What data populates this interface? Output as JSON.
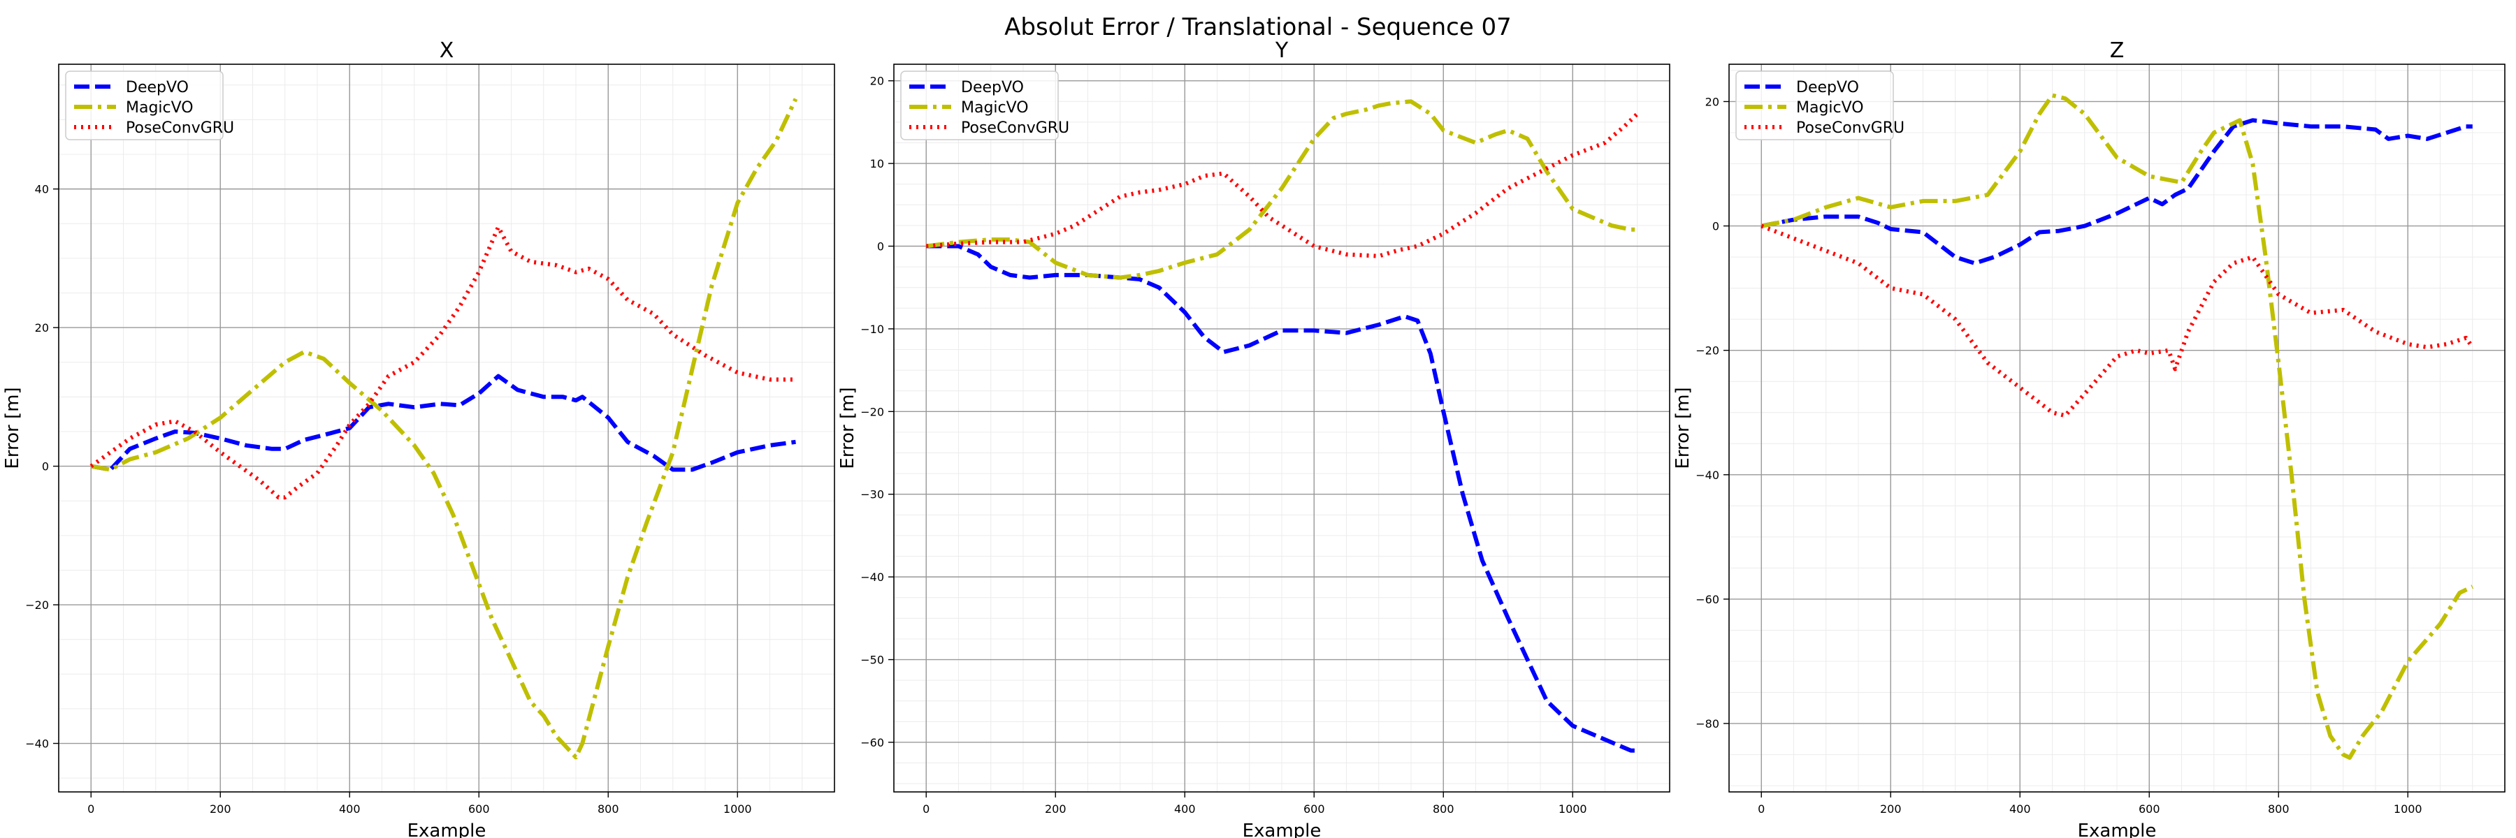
{
  "figure": {
    "title": "Absolut Error / Translational - Sequence 07"
  },
  "chart_data": [
    {
      "type": "line",
      "title": "X",
      "xlabel": "Example",
      "ylabel": "Error [m]",
      "xlim": [
        -50,
        1150
      ],
      "ylim": [
        -47,
        58
      ],
      "xticks": [
        0,
        200,
        400,
        600,
        800,
        1000
      ],
      "yticks": [
        -40,
        -20,
        0,
        20,
        40
      ],
      "grid": true,
      "legend": "top-left",
      "series": [
        {
          "name": "DeepVO",
          "color": "#0000ff",
          "style": "dashed",
          "x": [
            0,
            30,
            60,
            100,
            130,
            160,
            200,
            240,
            280,
            300,
            330,
            360,
            400,
            430,
            460,
            500,
            540,
            570,
            600,
            630,
            660,
            700,
            730,
            750,
            760,
            780,
            800,
            830,
            870,
            900,
            930,
            960,
            1000,
            1050,
            1090
          ],
          "y": [
            0,
            -0.5,
            2.5,
            4,
            5,
            4.8,
            4,
            3,
            2.5,
            2.5,
            3.8,
            4.5,
            5.5,
            8.5,
            9,
            8.5,
            9,
            8.8,
            10.5,
            13,
            11,
            10,
            10,
            9.5,
            10,
            8.5,
            7,
            3.5,
            1.5,
            -0.5,
            -0.5,
            0.5,
            2,
            3,
            3.5
          ]
        },
        {
          "name": "MagicVO",
          "color": "#bfbf00",
          "style": "dashdot",
          "x": [
            0,
            30,
            60,
            100,
            150,
            200,
            250,
            300,
            330,
            360,
            400,
            450,
            500,
            530,
            560,
            600,
            620,
            640,
            660,
            680,
            700,
            720,
            740,
            750,
            760,
            780,
            800,
            830,
            860,
            900,
            930,
            960,
            1000,
            1030,
            1060,
            1090
          ],
          "y": [
            0,
            -0.5,
            1,
            2,
            4,
            7,
            11,
            15,
            16.5,
            15.5,
            12,
            8,
            3,
            -1,
            -7,
            -17,
            -22,
            -26,
            -30,
            -34,
            -36,
            -39,
            -41,
            -42,
            -40,
            -33,
            -26,
            -16,
            -8,
            2,
            14,
            26,
            38,
            43,
            47,
            53
          ]
        },
        {
          "name": "PoseConvGRU",
          "color": "#ff0000",
          "style": "dotted",
          "x": [
            0,
            30,
            60,
            100,
            130,
            160,
            200,
            230,
            260,
            290,
            300,
            320,
            350,
            380,
            400,
            430,
            460,
            500,
            540,
            570,
            600,
            630,
            650,
            680,
            720,
            750,
            770,
            800,
            830,
            870,
            900,
            950,
            1000,
            1050,
            1090
          ],
          "y": [
            0,
            2,
            4,
            6,
            6.5,
            5,
            2,
            0,
            -2,
            -4.5,
            -4.5,
            -3,
            -1,
            3,
            6,
            9,
            13,
            15,
            19,
            23,
            28,
            34.5,
            31,
            29.5,
            29,
            28,
            28.5,
            27,
            24,
            22,
            19,
            16,
            13.5,
            12.5,
            12.5
          ]
        }
      ]
    },
    {
      "type": "line",
      "title": "Y",
      "xlabel": "Example",
      "ylabel": "Error [m]",
      "xlim": [
        -50,
        1150
      ],
      "ylim": [
        -66,
        22
      ],
      "xticks": [
        0,
        200,
        400,
        600,
        800,
        1000
      ],
      "yticks": [
        -60,
        -50,
        -40,
        -30,
        -20,
        -10,
        0,
        10,
        20
      ],
      "grid": true,
      "legend": "top-left",
      "series": [
        {
          "name": "DeepVO",
          "color": "#0000ff",
          "style": "dashed",
          "x": [
            0,
            50,
            80,
            100,
            130,
            160,
            200,
            250,
            300,
            330,
            360,
            400,
            430,
            460,
            500,
            550,
            600,
            650,
            700,
            740,
            760,
            780,
            800,
            830,
            860,
            900,
            930,
            960,
            1000,
            1030,
            1060,
            1090,
            1100
          ],
          "y": [
            0,
            0,
            -1,
            -2.5,
            -3.5,
            -3.8,
            -3.5,
            -3.5,
            -3.8,
            -4,
            -5,
            -8,
            -11,
            -12.8,
            -12,
            -10.2,
            -10.2,
            -10.5,
            -9.5,
            -8.5,
            -9,
            -13,
            -20,
            -30,
            -38,
            -45,
            -50,
            -55,
            -58,
            -59,
            -60,
            -61,
            -61
          ]
        },
        {
          "name": "MagicVO",
          "color": "#bfbf00",
          "style": "dashdot",
          "x": [
            0,
            50,
            100,
            130,
            160,
            200,
            250,
            300,
            330,
            360,
            400,
            450,
            500,
            550,
            600,
            630,
            650,
            680,
            700,
            720,
            750,
            780,
            800,
            850,
            880,
            900,
            930,
            960,
            1000,
            1030,
            1060,
            1090,
            1100
          ],
          "y": [
            0,
            0.5,
            0.8,
            0.8,
            0.5,
            -2,
            -3.5,
            -3.8,
            -3.5,
            -3,
            -2,
            -1,
            2,
            7,
            13,
            15.5,
            16,
            16.5,
            17,
            17.3,
            17.5,
            16,
            14,
            12.5,
            13.5,
            14,
            13,
            9,
            4.5,
            3.5,
            2.5,
            2,
            2
          ]
        },
        {
          "name": "PoseConvGRU",
          "color": "#ff0000",
          "style": "dotted",
          "x": [
            0,
            50,
            100,
            150,
            200,
            230,
            260,
            300,
            330,
            360,
            400,
            430,
            460,
            500,
            530,
            560,
            600,
            650,
            700,
            730,
            760,
            800,
            850,
            900,
            950,
            1000,
            1050,
            1080,
            1100
          ],
          "y": [
            0,
            0.3,
            0.5,
            0.5,
            1.5,
            2.5,
            4,
            6,
            6.5,
            6.8,
            7.5,
            8.5,
            8.8,
            6,
            3.5,
            2,
            0,
            -1,
            -1.2,
            -0.5,
            0,
            1.5,
            4,
            7,
            9,
            11,
            12.5,
            14.5,
            16
          ]
        }
      ]
    },
    {
      "type": "line",
      "title": "Z",
      "xlabel": "Example",
      "ylabel": "Error [m]",
      "xlim": [
        -50,
        1150
      ],
      "ylim": [
        -91,
        26
      ],
      "xticks": [
        0,
        200,
        400,
        600,
        800,
        1000
      ],
      "yticks": [
        -80,
        -60,
        -40,
        -20,
        0,
        20
      ],
      "grid": true,
      "legend": "top-left",
      "series": [
        {
          "name": "DeepVO",
          "color": "#0000ff",
          "style": "dashed",
          "x": [
            0,
            50,
            100,
            150,
            180,
            200,
            250,
            300,
            330,
            360,
            400,
            430,
            460,
            500,
            550,
            600,
            620,
            640,
            660,
            700,
            730,
            760,
            800,
            850,
            900,
            950,
            970,
            1000,
            1030,
            1060,
            1090,
            1100
          ],
          "y": [
            0,
            1,
            1.5,
            1.5,
            0.5,
            -0.5,
            -1,
            -5,
            -6,
            -5,
            -3,
            -1,
            -0.8,
            0,
            2,
            4.5,
            3.5,
            5,
            6,
            12,
            16,
            17,
            16.5,
            16,
            16,
            15.5,
            14,
            14.5,
            14,
            15,
            16,
            16
          ]
        },
        {
          "name": "MagicVO",
          "color": "#bfbf00",
          "style": "dashdot",
          "x": [
            0,
            50,
            100,
            150,
            200,
            250,
            300,
            350,
            400,
            430,
            450,
            470,
            500,
            550,
            600,
            650,
            680,
            700,
            720,
            740,
            760,
            780,
            800,
            820,
            840,
            860,
            880,
            900,
            910,
            930,
            960,
            1000,
            1050,
            1080,
            1100
          ],
          "y": [
            0,
            1,
            3,
            4.5,
            3,
            4,
            4,
            5,
            12,
            18,
            21,
            20.5,
            18,
            11,
            8,
            7,
            12,
            15,
            16,
            17,
            10,
            -5,
            -22,
            -40,
            -60,
            -75,
            -82,
            -85,
            -85.5,
            -82,
            -78,
            -70,
            -64,
            -59,
            -58
          ]
        },
        {
          "name": "PoseConvGRU",
          "color": "#ff0000",
          "style": "dotted",
          "x": [
            0,
            50,
            100,
            150,
            200,
            250,
            300,
            350,
            400,
            450,
            470,
            500,
            550,
            580,
            600,
            630,
            640,
            660,
            700,
            730,
            760,
            800,
            850,
            900,
            950,
            1000,
            1030,
            1060,
            1090,
            1100
          ],
          "y": [
            0,
            -2,
            -4,
            -6,
            -10,
            -11,
            -15,
            -22,
            -26,
            -30,
            -30.5,
            -27,
            -21,
            -20,
            -20.5,
            -20,
            -23,
            -17,
            -9,
            -6,
            -5,
            -11,
            -14,
            -13.5,
            -17,
            -19,
            -19.5,
            -19,
            -18,
            -19.5
          ]
        }
      ]
    }
  ]
}
